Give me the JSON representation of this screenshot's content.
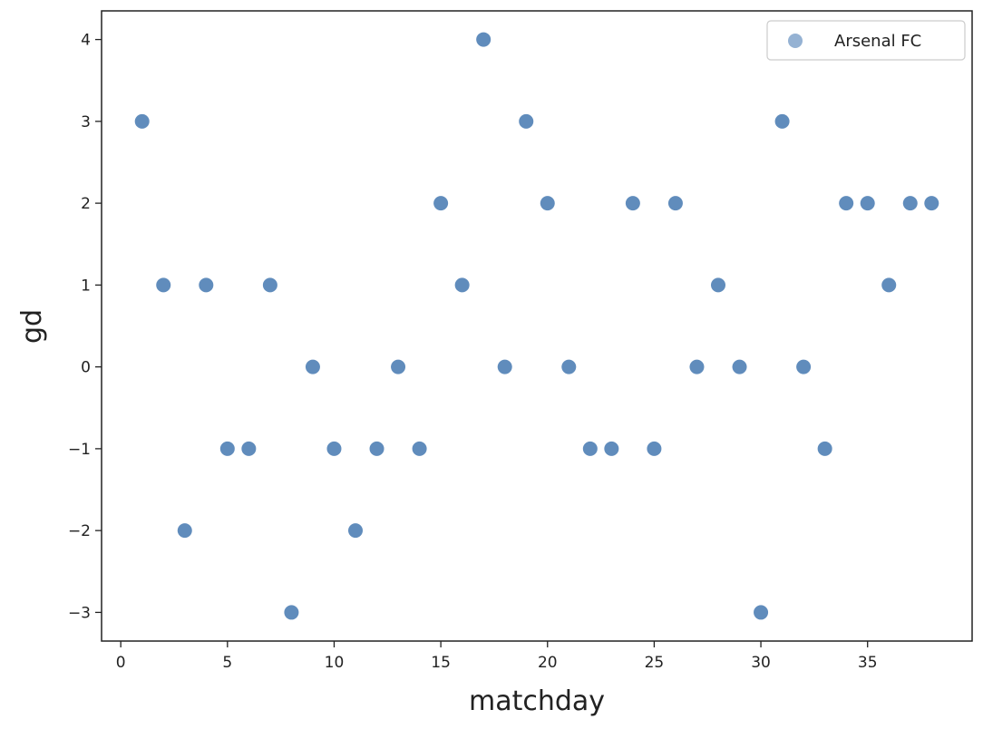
{
  "chart_data": {
    "type": "scatter",
    "xlabel": "matchday",
    "ylabel": "gd",
    "xlim": [
      -0.9,
      39.9
    ],
    "ylim": [
      -3.35,
      4.35
    ],
    "xticks": [
      0,
      5,
      10,
      15,
      20,
      25,
      30,
      35
    ],
    "yticks": [
      -3,
      -2,
      -1,
      0,
      1,
      2,
      3,
      4
    ],
    "xtick_labels": [
      "0",
      "5",
      "10",
      "15",
      "20",
      "25",
      "30",
      "35"
    ],
    "ytick_labels": [
      "−3",
      "−2",
      "−1",
      "0",
      "1",
      "2",
      "3",
      "4"
    ],
    "grid": false,
    "legend_position": "top-right",
    "series": [
      {
        "name": "Arsenal FC",
        "color": "#4f7fb5",
        "x": [
          1,
          2,
          3,
          4,
          5,
          6,
          7,
          8,
          9,
          10,
          11,
          12,
          13,
          14,
          15,
          16,
          17,
          18,
          19,
          20,
          21,
          22,
          23,
          24,
          25,
          26,
          27,
          28,
          29,
          30,
          31,
          32,
          33,
          34,
          35,
          36,
          37,
          38
        ],
        "y": [
          3,
          1,
          -2,
          1,
          -1,
          -1,
          1,
          -3,
          0,
          -1,
          -2,
          -1,
          0,
          -1,
          2,
          1,
          4,
          0,
          3,
          2,
          0,
          -1,
          -1,
          2,
          -1,
          2,
          0,
          1,
          0,
          -3,
          3,
          0,
          -1,
          2,
          2,
          1,
          2,
          2
        ]
      }
    ]
  }
}
